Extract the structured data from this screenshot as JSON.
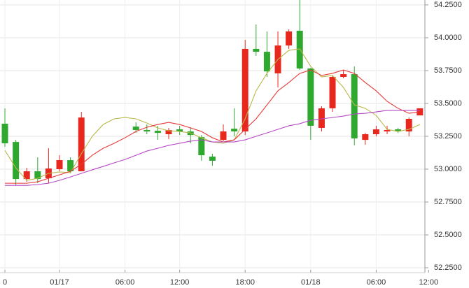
{
  "chart_data": {
    "type": "candlestick",
    "up_color": "#e8281e",
    "down_color": "#2fa82f",
    "grid": true,
    "x": [
      0,
      1,
      2,
      3,
      4,
      5,
      6,
      7,
      8,
      9,
      10,
      11,
      12,
      13,
      14,
      15,
      16,
      17,
      18,
      19,
      20,
      21,
      22,
      23,
      24,
      25,
      26,
      27,
      28,
      29,
      30,
      31,
      32,
      33,
      34,
      35,
      36,
      37,
      38
    ],
    "open": [
      53.346,
      53.207,
      52.925,
      52.984,
      52.931,
      53.0,
      53.069,
      52.984,
      null,
      null,
      null,
      null,
      53.324,
      53.298,
      53.292,
      53.266,
      53.303,
      53.287,
      53.244,
      53.096,
      53.223,
      53.308,
      53.287,
      53.915,
      53.893,
      53.729,
      53.941,
      54.053,
      53.766,
      53.314,
      53.463,
      53.702,
      53.723,
      53.223,
      53.266,
      53.287,
      53.303,
      53.287,
      53.409
    ],
    "high": [
      53.463,
      53.223,
      53.01,
      53.09,
      53.159,
      53.106,
      53.09,
      53.436,
      null,
      null,
      null,
      null,
      53.356,
      53.34,
      53.33,
      53.314,
      53.33,
      53.319,
      53.26,
      53.117,
      53.34,
      53.463,
      53.984,
      54.101,
      54.048,
      54.048,
      54.064,
      54.287,
      53.771,
      53.479,
      53.713,
      53.755,
      53.782,
      53.276,
      53.33,
      53.33,
      53.314,
      53.393,
      53.463
    ],
    "low": [
      53.17,
      52.877,
      52.904,
      52.893,
      52.893,
      52.984,
      52.968,
      52.984,
      null,
      null,
      null,
      null,
      53.276,
      53.266,
      53.223,
      53.229,
      53.26,
      53.197,
      53.064,
      53.026,
      53.213,
      53.25,
      53.26,
      53.862,
      53.702,
      53.622,
      53.915,
      53.755,
      53.223,
      53.287,
      53.436,
      53.691,
      53.181,
      53.186,
      53.25,
      53.266,
      53.276,
      53.25,
      53.409
    ],
    "close": [
      53.197,
      52.925,
      52.984,
      52.925,
      53.005,
      53.069,
      52.984,
      53.393,
      null,
      null,
      null,
      null,
      53.298,
      53.287,
      53.276,
      53.298,
      53.287,
      53.26,
      53.106,
      53.064,
      53.287,
      53.287,
      53.915,
      53.893,
      53.744,
      53.941,
      54.048,
      53.766,
      53.33,
      53.463,
      53.702,
      53.723,
      53.234,
      53.266,
      53.303,
      53.298,
      53.287,
      53.383,
      53.463
    ],
    "lines": [
      {
        "color": "#b8b848",
        "values": [
          53.143,
          53.01,
          52.915,
          52.931,
          52.968,
          52.979,
          52.973,
          53.117,
          53.25,
          53.34,
          53.383,
          53.393,
          53.383,
          53.351,
          53.314,
          53.292,
          53.287,
          53.276,
          53.239,
          53.207,
          53.197,
          53.223,
          53.383,
          53.596,
          53.729,
          53.835,
          53.904,
          53.915,
          53.782,
          53.702,
          53.713,
          53.622,
          53.489,
          53.463,
          53.409,
          53.303,
          53.287,
          53.303,
          53.34
        ]
      },
      {
        "color": "#e83838",
        "values": [
          52.893,
          52.893,
          52.893,
          52.904,
          52.931,
          52.957,
          52.984,
          53.037,
          53.106,
          53.159,
          53.197,
          53.239,
          53.287,
          53.319,
          53.34,
          53.356,
          53.34,
          53.314,
          53.287,
          53.239,
          53.207,
          53.223,
          53.303,
          53.383,
          53.489,
          53.596,
          53.659,
          53.729,
          53.755,
          53.713,
          53.729,
          53.755,
          53.729,
          53.659,
          53.596,
          53.516,
          53.463,
          53.425,
          53.436
        ]
      },
      {
        "color": "#b848c8",
        "values": [
          52.877,
          52.877,
          52.877,
          52.883,
          52.893,
          52.915,
          52.941,
          52.968,
          52.995,
          53.021,
          53.048,
          53.074,
          53.106,
          53.138,
          53.159,
          53.181,
          53.197,
          53.213,
          53.223,
          53.207,
          53.207,
          53.207,
          53.223,
          53.25,
          53.276,
          53.303,
          53.33,
          53.346,
          53.372,
          53.383,
          53.393,
          53.404,
          53.42,
          53.425,
          53.436,
          53.447,
          53.447,
          53.447,
          53.447
        ]
      }
    ],
    "xlim": [
      -0.45,
      38.46
    ],
    "ylim": [
      52.213,
      54.287
    ],
    "yticks": [
      {
        "value": 52.25,
        "label": "52.2500"
      },
      {
        "value": 52.5,
        "label": "52.5000"
      },
      {
        "value": 52.75,
        "label": "52.7500"
      },
      {
        "value": 53.0,
        "label": "53.0000"
      },
      {
        "value": 53.25,
        "label": "53.2500"
      },
      {
        "value": 53.5,
        "label": "53.5000"
      },
      {
        "value": 53.75,
        "label": "53.7500"
      },
      {
        "value": 54.0,
        "label": "54.0000"
      },
      {
        "value": 54.25,
        "label": "54.2500"
      }
    ],
    "xticks": [
      {
        "value": 0,
        "label": "0"
      },
      {
        "value": 5,
        "label": "01/17"
      },
      {
        "value": 11,
        "label": "06:00"
      },
      {
        "value": 16,
        "label": "12:00"
      },
      {
        "value": 22,
        "label": "18:00"
      },
      {
        "value": 28,
        "label": "01/18"
      },
      {
        "value": 34,
        "label": "06:00"
      },
      {
        "value": 38.8,
        "label": "12:00"
      }
    ]
  }
}
